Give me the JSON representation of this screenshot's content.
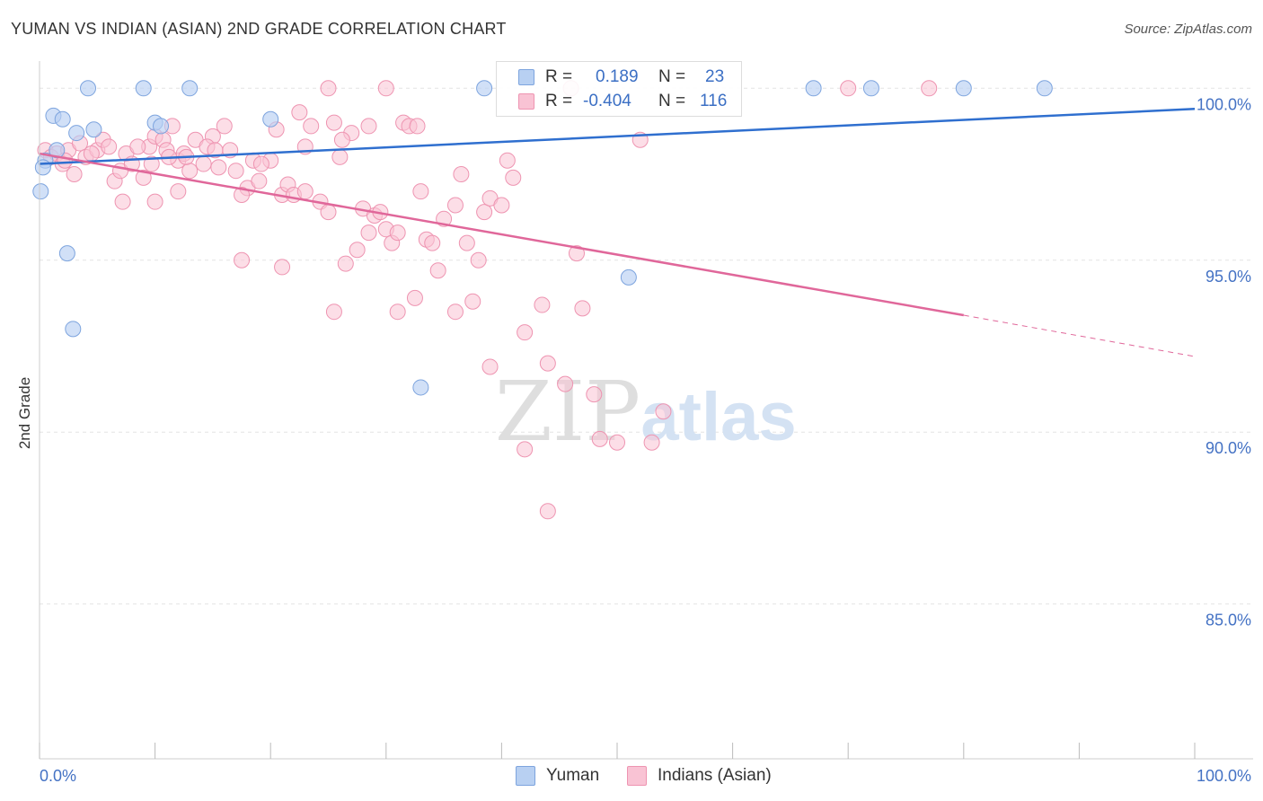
{
  "title": "YUMAN VS INDIAN (ASIAN) 2ND GRADE CORRELATION CHART",
  "source": "Source: ZipAtlas.com",
  "watermark": {
    "zip": "ZIP",
    "atlas": "atlas"
  },
  "colors": {
    "yuman_fill": "#b8d0f2",
    "yuman_stroke": "#7da4de",
    "yuman_line": "#2f6fcf",
    "indian_fill": "#f9c3d4",
    "indian_stroke": "#ee94b1",
    "indian_line": "#e0679a",
    "tick_label": "#4472c4",
    "grid": "#e4e4e4"
  },
  "legend": {
    "rows": [
      {
        "r_label": "R =",
        "r_value": "0.189",
        "n_label": "N =",
        "n_value": "23"
      },
      {
        "r_label": "R =",
        "r_value": "-0.404",
        "n_label": "N =",
        "n_value": "116"
      }
    ],
    "bottom": [
      "Yuman",
      "Indians (Asian)"
    ]
  },
  "chart_data": {
    "type": "scatter",
    "title": "YUMAN VS INDIAN (ASIAN) 2ND GRADE CORRELATION CHART",
    "xlabel": "",
    "ylabel": "2nd Grade",
    "xlim": [
      0,
      100
    ],
    "ylim": [
      80.5,
      101.0
    ],
    "x_ticks": [
      "0.0%",
      "100.0%"
    ],
    "y_ticks": [
      {
        "value": 100,
        "label": "100.0%"
      },
      {
        "value": 95,
        "label": "95.0%"
      },
      {
        "value": 90,
        "label": "90.0%"
      },
      {
        "value": 85,
        "label": "85.0%"
      }
    ],
    "grid": true,
    "legend_position": "top-center",
    "series": [
      {
        "name": "Yuman",
        "r": 0.189,
        "n": 23,
        "trend": {
          "x": [
            0,
            100
          ],
          "y": [
            97.8,
            99.4
          ]
        },
        "points": [
          [
            4.2,
            100
          ],
          [
            9,
            100
          ],
          [
            13,
            100
          ],
          [
            38.5,
            100
          ],
          [
            67,
            100
          ],
          [
            72,
            100
          ],
          [
            80,
            100
          ],
          [
            87,
            100
          ],
          [
            1.2,
            99.2
          ],
          [
            2,
            99.1
          ],
          [
            10,
            99.0
          ],
          [
            20,
            99.1
          ],
          [
            3.2,
            98.7
          ],
          [
            4.7,
            98.8
          ],
          [
            10.5,
            98.9
          ],
          [
            1.5,
            98.2
          ],
          [
            0.5,
            97.9
          ],
          [
            0.3,
            97.7
          ],
          [
            0.1,
            97.0
          ],
          [
            2.4,
            95.2
          ],
          [
            2.9,
            93.0
          ],
          [
            51,
            94.5
          ],
          [
            33,
            91.3
          ]
        ]
      },
      {
        "name": "Indians (Asian)",
        "r": -0.404,
        "n": 116,
        "trend": {
          "x": [
            0,
            80
          ],
          "y": [
            98.1,
            93.4
          ]
        },
        "trend_dashed": {
          "x": [
            80,
            100
          ],
          "y": [
            93.4,
            92.2
          ]
        },
        "points": [
          [
            25,
            100
          ],
          [
            30,
            100
          ],
          [
            46,
            100
          ],
          [
            70,
            100
          ],
          [
            77,
            100
          ],
          [
            0.5,
            98.2
          ],
          [
            1,
            98.0
          ],
          [
            1.5,
            98.1
          ],
          [
            2,
            97.8
          ],
          [
            2.5,
            98.2
          ],
          [
            3,
            97.5
          ],
          [
            3.5,
            98.4
          ],
          [
            4,
            98.0
          ],
          [
            5,
            98.2
          ],
          [
            5.5,
            98.5
          ],
          [
            6.5,
            97.3
          ],
          [
            7,
            97.6
          ],
          [
            7.5,
            98.1
          ],
          [
            8,
            97.8
          ],
          [
            9,
            97.4
          ],
          [
            9.5,
            98.3
          ],
          [
            10,
            98.6
          ],
          [
            10.7,
            98.5
          ],
          [
            11,
            98.2
          ],
          [
            11.5,
            98.9
          ],
          [
            12,
            97.9
          ],
          [
            12.5,
            98.1
          ],
          [
            13,
            97.6
          ],
          [
            13.5,
            98.5
          ],
          [
            14.2,
            97.8
          ],
          [
            15,
            98.6
          ],
          [
            15.5,
            97.7
          ],
          [
            16,
            98.9
          ],
          [
            16.5,
            98.2
          ],
          [
            17,
            97.6
          ],
          [
            18,
            97.1
          ],
          [
            18.5,
            97.9
          ],
          [
            19,
            97.3
          ],
          [
            20,
            97.9
          ],
          [
            20.5,
            98.8
          ],
          [
            21,
            96.9
          ],
          [
            21.5,
            97.2
          ],
          [
            22,
            96.9
          ],
          [
            22.5,
            99.3
          ],
          [
            23,
            98.3
          ],
          [
            23.5,
            98.9
          ],
          [
            24.3,
            96.7
          ],
          [
            25,
            96.4
          ],
          [
            25.5,
            99.0
          ],
          [
            26,
            98.0
          ],
          [
            27,
            98.7
          ],
          [
            27.5,
            95.3
          ],
          [
            28,
            96.5
          ],
          [
            28.5,
            95.8
          ],
          [
            29,
            96.3
          ],
          [
            29.5,
            96.4
          ],
          [
            30,
            95.9
          ],
          [
            30.5,
            95.5
          ],
          [
            31,
            95.8
          ],
          [
            31.5,
            99.0
          ],
          [
            32,
            98.9
          ],
          [
            33,
            97.0
          ],
          [
            33.5,
            95.6
          ],
          [
            34,
            95.5
          ],
          [
            35,
            96.2
          ],
          [
            36,
            96.6
          ],
          [
            36.5,
            97.5
          ],
          [
            37,
            95.5
          ],
          [
            38,
            95.0
          ],
          [
            38.5,
            96.4
          ],
          [
            39,
            96.8
          ],
          [
            40,
            96.6
          ],
          [
            40.5,
            97.9
          ],
          [
            41,
            97.4
          ],
          [
            7.2,
            96.7
          ],
          [
            10,
            96.7
          ],
          [
            12,
            97.0
          ],
          [
            17.5,
            96.9
          ],
          [
            23,
            97.0
          ],
          [
            17.5,
            95.0
          ],
          [
            21,
            94.8
          ],
          [
            26.5,
            94.9
          ],
          [
            25.5,
            93.5
          ],
          [
            31,
            93.5
          ],
          [
            32.5,
            93.9
          ],
          [
            34.5,
            94.7
          ],
          [
            36,
            93.5
          ],
          [
            37.5,
            93.8
          ],
          [
            39,
            91.9
          ],
          [
            42,
            92.9
          ],
          [
            43.5,
            93.7
          ],
          [
            44,
            92.0
          ],
          [
            45.5,
            91.4
          ],
          [
            47,
            93.6
          ],
          [
            48,
            91.1
          ],
          [
            48.5,
            89.8
          ],
          [
            42,
            89.5
          ],
          [
            44,
            87.7
          ],
          [
            50,
            89.7
          ],
          [
            53,
            89.7
          ],
          [
            54,
            90.6
          ],
          [
            52,
            98.5
          ],
          [
            46.5,
            95.2
          ],
          [
            28.5,
            98.9
          ],
          [
            6,
            98.3
          ],
          [
            8.5,
            98.3
          ],
          [
            4.5,
            98.1
          ],
          [
            2.2,
            97.9
          ],
          [
            9.7,
            97.8
          ],
          [
            14.5,
            98.3
          ],
          [
            19.2,
            97.8
          ],
          [
            26.2,
            98.5
          ],
          [
            32.7,
            98.9
          ],
          [
            11.2,
            98.0
          ],
          [
            12.7,
            98.0
          ],
          [
            15.2,
            98.2
          ]
        ]
      }
    ]
  }
}
